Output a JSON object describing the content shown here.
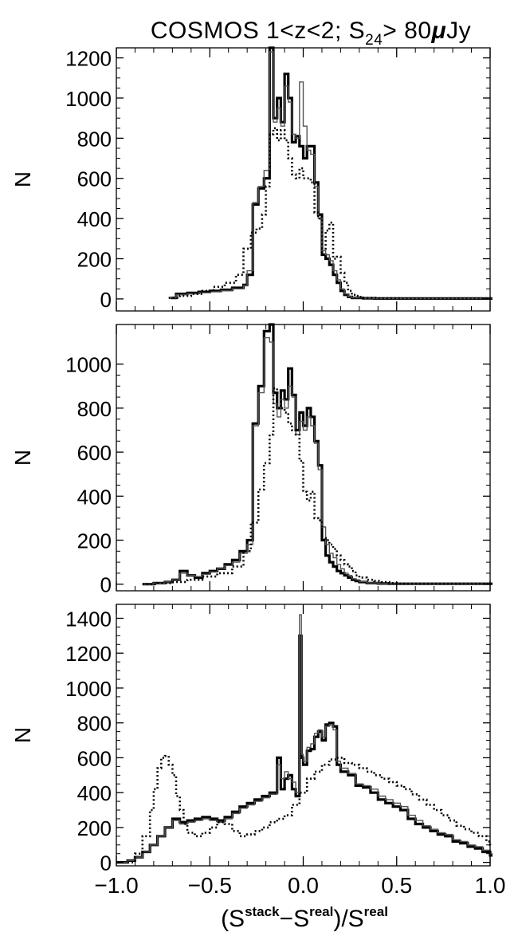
{
  "figure": {
    "title": {
      "main": "COSMOS 1<z<2; S",
      "sub": "24",
      "tail": "> 80",
      "mu": "μ",
      "unit": "Jy"
    },
    "xlabel": {
      "open": "(S",
      "sup1": "stack",
      "mid": "−S",
      "sup2": "real",
      "close": ")/S",
      "sup3": "real"
    }
  },
  "chart_data": [
    {
      "type": "line",
      "panel": "top",
      "xlim": [
        -1.0,
        1.0
      ],
      "ylim": [
        -60,
        1250
      ],
      "yticks": [
        0,
        200,
        400,
        600,
        800,
        1000,
        1200
      ],
      "ytick_labels": [
        "0",
        "200",
        "400",
        "600",
        "800",
        "1000",
        "1200"
      ],
      "xticks": [
        -1.0,
        -0.5,
        0.0,
        0.5,
        1.0
      ],
      "ylabel": "N",
      "grid": false,
      "series": [
        {
          "style": "thick",
          "x": [
            -0.71,
            -0.68,
            -0.62,
            -0.56,
            -0.5,
            -0.44,
            -0.38,
            -0.32,
            -0.3,
            -0.27,
            -0.24,
            -0.21,
            -0.18,
            -0.16,
            -0.14,
            -0.12,
            -0.1,
            -0.08,
            -0.06,
            -0.04,
            -0.02,
            0.0,
            0.02,
            0.04,
            0.06,
            0.08,
            0.1,
            0.12,
            0.14,
            0.16,
            0.18,
            0.2,
            0.22,
            0.24,
            0.26,
            0.28,
            0.32,
            0.38,
            0.44,
            0.5,
            0.6,
            0.7,
            0.8,
            0.9,
            1.0
          ],
          "y": [
            5,
            25,
            30,
            35,
            40,
            45,
            55,
            70,
            120,
            470,
            550,
            600,
            1250,
            900,
            1000,
            880,
            1120,
            1000,
            780,
            810,
            760,
            700,
            760,
            760,
            580,
            420,
            220,
            200,
            170,
            120,
            80,
            40,
            20,
            10,
            5,
            5,
            3,
            2,
            2,
            2,
            2,
            2,
            2,
            2,
            2
          ]
        },
        {
          "style": "thin",
          "x": [
            -0.71,
            -0.68,
            -0.62,
            -0.56,
            -0.5,
            -0.44,
            -0.38,
            -0.32,
            -0.3,
            -0.27,
            -0.24,
            -0.21,
            -0.18,
            -0.16,
            -0.14,
            -0.12,
            -0.1,
            -0.08,
            -0.06,
            -0.04,
            -0.02,
            0.0,
            0.02,
            0.04,
            0.06,
            0.08,
            0.1,
            0.12,
            0.14,
            0.16,
            0.18,
            0.2,
            0.22,
            0.24,
            0.26,
            0.28,
            0.32,
            0.38,
            0.44,
            0.5,
            0.6,
            0.7,
            0.8,
            0.9,
            1.0
          ],
          "y": [
            5,
            20,
            25,
            30,
            35,
            40,
            50,
            65,
            140,
            480,
            560,
            640,
            1230,
            880,
            950,
            860,
            1060,
            980,
            820,
            800,
            1080,
            860,
            740,
            720,
            560,
            400,
            240,
            220,
            190,
            140,
            95,
            50,
            25,
            12,
            6,
            5,
            3,
            2,
            2,
            2,
            2,
            2,
            2,
            2,
            2
          ]
        },
        {
          "style": "dotted",
          "x": [
            -0.72,
            -0.66,
            -0.6,
            -0.54,
            -0.48,
            -0.42,
            -0.36,
            -0.32,
            -0.28,
            -0.25,
            -0.22,
            -0.2,
            -0.18,
            -0.16,
            -0.14,
            -0.12,
            -0.1,
            -0.08,
            -0.06,
            -0.04,
            -0.02,
            0.0,
            0.02,
            0.04,
            0.06,
            0.08,
            0.1,
            0.12,
            0.14,
            0.16,
            0.18,
            0.2,
            0.22,
            0.24,
            0.26,
            0.28,
            0.3,
            0.32,
            0.36,
            0.4,
            0.46,
            0.52,
            0.6,
            0.7,
            0.8,
            0.9,
            1.0
          ],
          "y": [
            5,
            15,
            25,
            40,
            60,
            80,
            120,
            250,
            330,
            350,
            420,
            560,
            820,
            850,
            790,
            840,
            790,
            700,
            620,
            600,
            650,
            600,
            600,
            580,
            430,
            400,
            250,
            340,
            380,
            200,
            210,
            130,
            80,
            40,
            20,
            15,
            10,
            5,
            5,
            3,
            3,
            2,
            2,
            2,
            2,
            2,
            2
          ]
        }
      ]
    },
    {
      "type": "line",
      "panel": "middle",
      "xlim": [
        -1.0,
        1.0
      ],
      "ylim": [
        -30,
        1180
      ],
      "yticks": [
        0,
        200,
        400,
        600,
        800,
        1000
      ],
      "ytick_labels": [
        "0",
        "200",
        "400",
        "600",
        "800",
        "1000"
      ],
      "xticks": [
        -1.0,
        -0.5,
        0.0,
        0.5,
        1.0
      ],
      "ylabel": "N",
      "grid": false,
      "series": [
        {
          "style": "thick",
          "x": [
            -0.86,
            -0.8,
            -0.74,
            -0.7,
            -0.66,
            -0.62,
            -0.58,
            -0.54,
            -0.5,
            -0.46,
            -0.42,
            -0.38,
            -0.34,
            -0.3,
            -0.27,
            -0.24,
            -0.21,
            -0.18,
            -0.16,
            -0.14,
            -0.12,
            -0.1,
            -0.08,
            -0.06,
            -0.04,
            -0.02,
            0.0,
            0.02,
            0.04,
            0.06,
            0.08,
            0.1,
            0.12,
            0.14,
            0.16,
            0.18,
            0.2,
            0.22,
            0.24,
            0.26,
            0.28,
            0.3,
            0.34,
            0.4,
            0.46,
            0.52,
            0.6,
            0.7,
            0.8,
            0.9,
            1.0
          ],
          "y": [
            0,
            5,
            10,
            20,
            60,
            40,
            30,
            50,
            60,
            70,
            90,
            110,
            150,
            200,
            730,
            900,
            1150,
            1180,
            870,
            800,
            880,
            840,
            980,
            860,
            700,
            780,
            720,
            800,
            760,
            650,
            540,
            200,
            130,
            100,
            80,
            60,
            50,
            40,
            30,
            20,
            15,
            10,
            5,
            3,
            2,
            2,
            2,
            2,
            2,
            2,
            2
          ]
        },
        {
          "style": "thin",
          "x": [
            -0.86,
            -0.8,
            -0.74,
            -0.7,
            -0.66,
            -0.62,
            -0.58,
            -0.54,
            -0.5,
            -0.46,
            -0.42,
            -0.38,
            -0.34,
            -0.3,
            -0.27,
            -0.24,
            -0.21,
            -0.18,
            -0.16,
            -0.14,
            -0.12,
            -0.1,
            -0.08,
            -0.06,
            -0.04,
            -0.02,
            0.0,
            0.02,
            0.04,
            0.06,
            0.08,
            0.1,
            0.12,
            0.14,
            0.16,
            0.18,
            0.2,
            0.22,
            0.24,
            0.26,
            0.28,
            0.3,
            0.34,
            0.4,
            0.46,
            0.52,
            0.6,
            0.7,
            0.8,
            0.9,
            1.0
          ],
          "y": [
            0,
            5,
            10,
            20,
            50,
            40,
            35,
            45,
            55,
            70,
            85,
            100,
            140,
            180,
            720,
            870,
            1120,
            1100,
            820,
            760,
            840,
            800,
            900,
            850,
            680,
            740,
            700,
            760,
            720,
            640,
            520,
            260,
            180,
            140,
            120,
            90,
            70,
            50,
            40,
            25,
            20,
            12,
            6,
            3,
            2,
            2,
            2,
            2,
            2,
            2,
            2
          ]
        },
        {
          "style": "dotted",
          "x": [
            -0.86,
            -0.78,
            -0.7,
            -0.62,
            -0.54,
            -0.46,
            -0.38,
            -0.32,
            -0.28,
            -0.24,
            -0.21,
            -0.18,
            -0.16,
            -0.14,
            -0.12,
            -0.1,
            -0.08,
            -0.06,
            -0.04,
            -0.02,
            0.0,
            0.02,
            0.04,
            0.06,
            0.08,
            0.1,
            0.12,
            0.14,
            0.16,
            0.18,
            0.2,
            0.22,
            0.24,
            0.26,
            0.28,
            0.3,
            0.34,
            0.38,
            0.42,
            0.46,
            0.5,
            0.54,
            0.58,
            0.62,
            0.7,
            0.8,
            0.9,
            1.0
          ],
          "y": [
            0,
            5,
            10,
            20,
            35,
            50,
            80,
            150,
            280,
            430,
            550,
            680,
            890,
            870,
            800,
            780,
            730,
            700,
            680,
            560,
            420,
            380,
            420,
            300,
            290,
            210,
            200,
            180,
            160,
            130,
            110,
            90,
            80,
            60,
            40,
            30,
            20,
            15,
            10,
            5,
            3,
            2,
            2,
            2,
            2,
            2,
            2,
            2
          ]
        }
      ]
    },
    {
      "type": "line",
      "panel": "bottom",
      "xlim": [
        -1.0,
        1.0
      ],
      "ylim": [
        -20,
        1480
      ],
      "yticks": [
        0,
        200,
        400,
        600,
        800,
        1000,
        1200,
        1400
      ],
      "ytick_labels": [
        "0",
        "200",
        "400",
        "600",
        "800",
        "1000",
        "1200",
        "1400"
      ],
      "xticks": [
        -1.0,
        -0.5,
        0.0,
        0.5,
        1.0
      ],
      "xtick_labels": [
        "−1.0",
        "−0.5",
        "0.0",
        "0.5",
        "1.0"
      ],
      "ylabel": "N",
      "grid": false,
      "series": [
        {
          "style": "thick",
          "x": [
            -1.0,
            -0.94,
            -0.9,
            -0.86,
            -0.82,
            -0.78,
            -0.74,
            -0.7,
            -0.66,
            -0.62,
            -0.58,
            -0.54,
            -0.5,
            -0.46,
            -0.42,
            -0.38,
            -0.34,
            -0.3,
            -0.26,
            -0.22,
            -0.18,
            -0.14,
            -0.12,
            -0.1,
            -0.08,
            -0.06,
            -0.04,
            -0.02,
            -0.01,
            0.0,
            0.02,
            0.04,
            0.06,
            0.08,
            0.1,
            0.12,
            0.14,
            0.16,
            0.18,
            0.2,
            0.24,
            0.28,
            0.32,
            0.36,
            0.4,
            0.44,
            0.48,
            0.52,
            0.56,
            0.6,
            0.64,
            0.68,
            0.72,
            0.76,
            0.8,
            0.84,
            0.88,
            0.92,
            0.96,
            1.0
          ],
          "y": [
            0,
            10,
            30,
            60,
            100,
            150,
            200,
            250,
            230,
            240,
            250,
            260,
            250,
            240,
            260,
            290,
            320,
            340,
            360,
            380,
            400,
            600,
            420,
            480,
            500,
            420,
            380,
            1300,
            600,
            560,
            640,
            650,
            720,
            750,
            700,
            790,
            800,
            780,
            560,
            520,
            500,
            440,
            430,
            400,
            360,
            340,
            320,
            300,
            250,
            220,
            200,
            180,
            160,
            150,
            120,
            110,
            90,
            80,
            60,
            40
          ]
        },
        {
          "style": "thin",
          "x": [
            -1.0,
            -0.94,
            -0.9,
            -0.86,
            -0.82,
            -0.78,
            -0.74,
            -0.7,
            -0.66,
            -0.62,
            -0.58,
            -0.54,
            -0.5,
            -0.46,
            -0.42,
            -0.38,
            -0.34,
            -0.3,
            -0.26,
            -0.22,
            -0.18,
            -0.14,
            -0.12,
            -0.1,
            -0.08,
            -0.06,
            -0.04,
            -0.02,
            -0.01,
            0.0,
            0.02,
            0.04,
            0.06,
            0.08,
            0.1,
            0.12,
            0.14,
            0.16,
            0.18,
            0.2,
            0.24,
            0.28,
            0.32,
            0.36,
            0.4,
            0.44,
            0.48,
            0.52,
            0.56,
            0.6,
            0.64,
            0.68,
            0.72,
            0.76,
            0.8,
            0.84,
            0.88,
            0.92,
            0.96,
            1.0
          ],
          "y": [
            0,
            10,
            30,
            60,
            100,
            150,
            200,
            240,
            220,
            230,
            240,
            250,
            240,
            230,
            250,
            280,
            310,
            330,
            350,
            370,
            390,
            560,
            480,
            520,
            480,
            460,
            400,
            1420,
            620,
            580,
            660,
            680,
            740,
            760,
            720,
            780,
            790,
            760,
            580,
            540,
            510,
            450,
            440,
            420,
            380,
            360,
            340,
            320,
            270,
            240,
            210,
            190,
            170,
            160,
            130,
            120,
            100,
            90,
            70,
            50
          ]
        },
        {
          "style": "dotted",
          "x": [
            -0.94,
            -0.9,
            -0.86,
            -0.82,
            -0.8,
            -0.78,
            -0.76,
            -0.74,
            -0.72,
            -0.7,
            -0.68,
            -0.66,
            -0.64,
            -0.62,
            -0.58,
            -0.54,
            -0.5,
            -0.46,
            -0.42,
            -0.38,
            -0.34,
            -0.3,
            -0.26,
            -0.22,
            -0.18,
            -0.14,
            -0.1,
            -0.06,
            -0.02,
            0.02,
            0.06,
            0.1,
            0.14,
            0.18,
            0.22,
            0.26,
            0.3,
            0.34,
            0.38,
            0.42,
            0.46,
            0.5,
            0.54,
            0.58,
            0.62,
            0.66,
            0.7,
            0.74,
            0.78,
            0.82,
            0.86,
            0.9,
            0.94,
            0.98,
            1.0
          ],
          "y": [
            0,
            50,
            150,
            300,
            420,
            540,
            600,
            610,
            560,
            500,
            380,
            300,
            220,
            170,
            150,
            170,
            200,
            230,
            220,
            180,
            150,
            160,
            180,
            200,
            230,
            250,
            270,
            330,
            400,
            480,
            520,
            560,
            590,
            600,
            570,
            560,
            540,
            520,
            500,
            480,
            460,
            440,
            420,
            390,
            360,
            330,
            300,
            270,
            240,
            210,
            190,
            170,
            150,
            120,
            100
          ]
        }
      ]
    }
  ]
}
